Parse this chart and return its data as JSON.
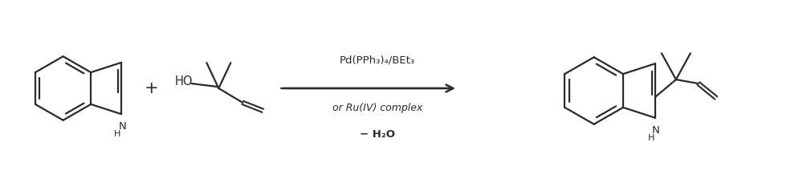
{
  "background_color": "#ffffff",
  "line_color": "#2a2a2a",
  "text_color": "#2a2a2a",
  "arrow_label_line1": "Pd(PPh₃)₄/BEt₃",
  "arrow_label_line2": "or Ru(IV) complex",
  "arrow_label_line3": "− H₂O",
  "fig_width": 10.0,
  "fig_height": 2.23,
  "dpi": 100
}
